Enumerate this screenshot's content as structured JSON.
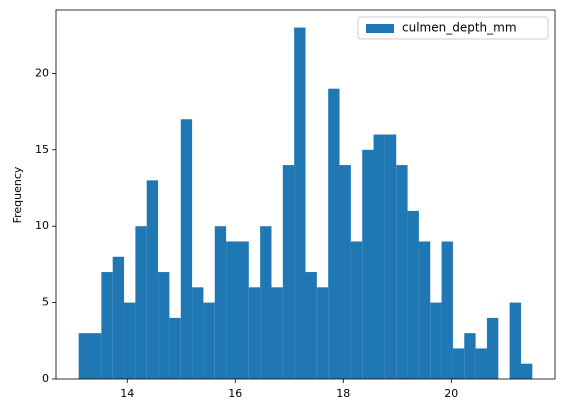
{
  "chart_data": {
    "type": "histogram",
    "y_label": "Frequency",
    "bins": [
      13.1,
      13.31,
      13.52,
      13.73,
      13.94,
      14.15,
      14.36,
      14.57,
      14.78,
      14.99,
      15.2,
      15.41,
      15.62,
      15.83,
      16.04,
      16.25,
      16.46,
      16.67,
      16.88,
      17.09,
      17.3,
      17.51,
      17.72,
      17.93,
      18.14,
      18.35,
      18.56,
      18.77,
      18.98,
      19.19,
      19.4,
      19.61,
      19.82,
      20.03,
      20.24,
      20.45,
      20.66,
      20.87,
      21.08,
      21.29,
      21.5
    ],
    "series": [
      {
        "name": "culmen_depth_mm",
        "color": "#1f77b4",
        "values": [
          3,
          3,
          7,
          8,
          5,
          10,
          13,
          7,
          4,
          17,
          6,
          5,
          10,
          9,
          9,
          6,
          10,
          6,
          14,
          23,
          7,
          6,
          19,
          14,
          9,
          15,
          16,
          16,
          14,
          11,
          9,
          5,
          9,
          2,
          3,
          2,
          4,
          0,
          5,
          1
        ]
      }
    ],
    "xlim": [
      12.68,
      21.92
    ],
    "xticks": [
      14,
      16,
      18,
      20
    ],
    "ylim": [
      0,
      24.15
    ],
    "yticks": [
      0,
      5,
      10,
      15,
      20
    ],
    "legend": "upper right"
  }
}
